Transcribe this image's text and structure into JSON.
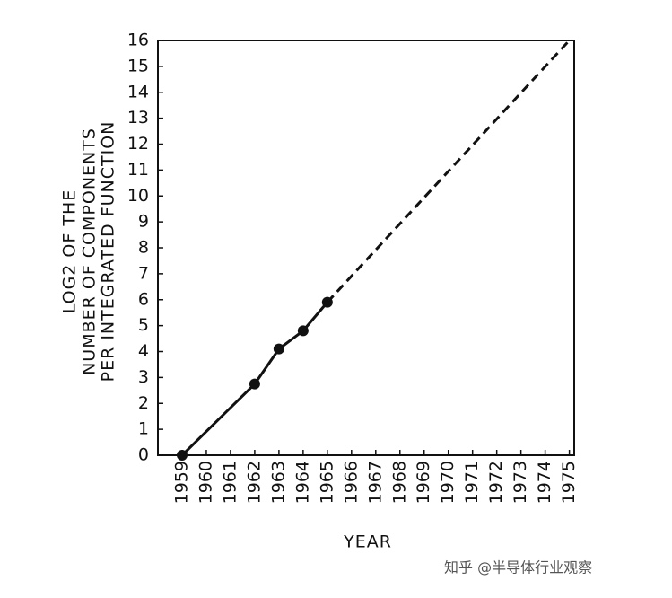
{
  "chart_data": {
    "type": "line",
    "y_label": [
      "LOG2 OF THE",
      "NUMBER OF COMPONENTS",
      "PER INTEGRATED FUNCTION"
    ],
    "x_label": "YEAR",
    "series": [
      {
        "style": "solid",
        "markers": true,
        "color": "#111111",
        "x": [
          1959,
          1962,
          1963,
          1964,
          1965
        ],
        "values": [
          0,
          2.75,
          4.1,
          4.8,
          5.9
        ]
      },
      {
        "style": "dashed",
        "markers": false,
        "color": "#111111",
        "x": [
          1965,
          1975
        ],
        "values": [
          5.9,
          16
        ]
      }
    ],
    "xlim": [
      1958,
      1975.2
    ],
    "xticks": [
      1959,
      1960,
      1961,
      1962,
      1963,
      1964,
      1965,
      1966,
      1967,
      1968,
      1969,
      1970,
      1971,
      1972,
      1973,
      1974,
      1975
    ],
    "ylim": [
      0,
      16
    ],
    "yticks": [
      0,
      1,
      2,
      3,
      4,
      5,
      6,
      7,
      8,
      9,
      10,
      11,
      12,
      13,
      14,
      15,
      16
    ],
    "grid": false,
    "watermark": "知乎 @半导体行业观察"
  }
}
